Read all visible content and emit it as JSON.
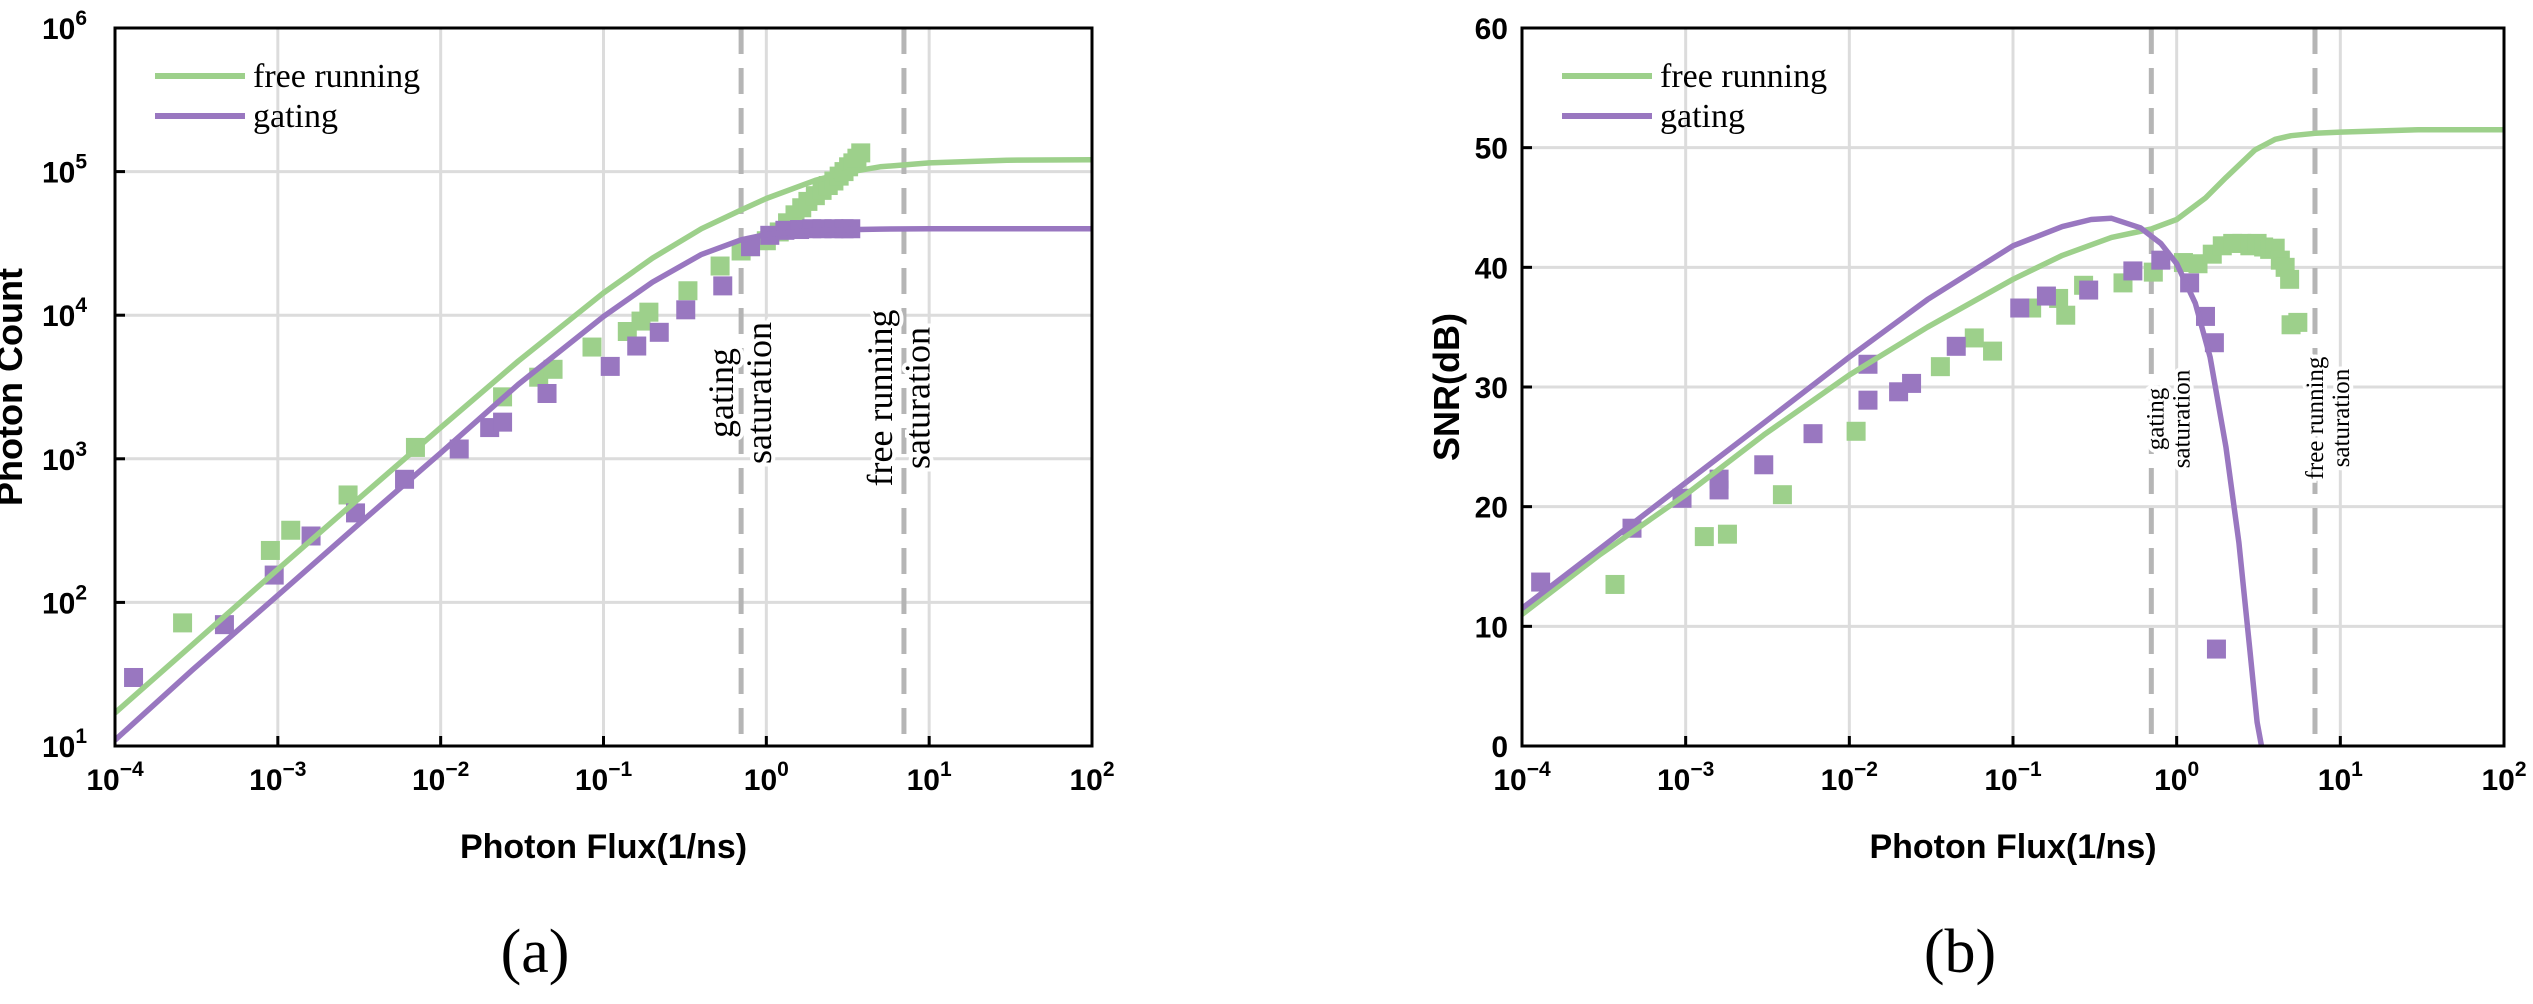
{
  "panels": {
    "a_label": "(a)",
    "b_label": "(b)"
  },
  "colors": {
    "free_running": "#9dd08b",
    "gating": "#9977c0",
    "grid": "#dcdcdc",
    "saturation_line": "#b5b5b5"
  },
  "chart_data": [
    {
      "type": "line",
      "title": "",
      "xlabel": "Photon Flux(1/ns)",
      "ylabel": "Photon Count",
      "xscale": "log",
      "yscale": "log",
      "xlim": [
        0.0001,
        100
      ],
      "ylim": [
        10,
        1000000
      ],
      "xticks": [
        0.0001,
        0.001,
        0.01,
        0.1,
        1,
        10,
        100
      ],
      "yticks": [
        10,
        100,
        1000,
        10000,
        100000,
        1000000
      ],
      "grid": true,
      "legend": {
        "position": "top-left",
        "entries": [
          "free running",
          "gating"
        ]
      },
      "vlines": [
        {
          "x": 0.7,
          "label": [
            "gating",
            "saturation"
          ]
        },
        {
          "x": 7,
          "label": [
            "free running",
            "saturation"
          ]
        }
      ],
      "series": [
        {
          "name": "free running",
          "kind": "line",
          "x": [
            0.0001,
            0.0003,
            0.001,
            0.003,
            0.01,
            0.03,
            0.1,
            0.2,
            0.4,
            0.7,
            1,
            2,
            3,
            5,
            10,
            30,
            100
          ],
          "y": [
            17,
            51,
            170,
            505,
            1650,
            4800,
            14300,
            25000,
            40000,
            54000,
            65000,
            87000,
            98000,
            108000,
            115000,
            120000,
            121000
          ]
        },
        {
          "name": "gating",
          "kind": "line",
          "x": [
            0.0001,
            0.0003,
            0.001,
            0.003,
            0.01,
            0.03,
            0.1,
            0.2,
            0.4,
            0.7,
            1,
            2,
            5,
            10,
            100
          ],
          "y": [
            11,
            34,
            112,
            335,
            1100,
            3300,
            9800,
            17000,
            26500,
            33500,
            36500,
            39000,
            39800,
            40000,
            40000
          ]
        },
        {
          "name": "free running data",
          "kind": "scatter",
          "x": [
            0.00026,
            0.0009,
            0.0012,
            0.0027,
            0.007,
            0.024,
            0.04,
            0.049,
            0.085,
            0.14,
            0.17,
            0.19,
            0.33,
            0.52,
            0.7,
            0.8,
            1.0,
            1.2,
            1.35,
            1.5,
            1.65,
            1.8,
            2.0,
            2.2,
            2.4,
            2.6,
            2.8,
            3.0,
            3.2,
            3.4,
            3.6,
            3.8
          ],
          "y": [
            72,
            230,
            318,
            560,
            1200,
            2700,
            3700,
            4200,
            6000,
            7700,
            9100,
            10500,
            14800,
            22000,
            28000,
            30000,
            33000,
            38000,
            44000,
            50000,
            56000,
            62000,
            68000,
            74000,
            80000,
            86000,
            93000,
            100000,
            108000,
            115000,
            124000,
            135000
          ]
        },
        {
          "name": "gating data",
          "kind": "scatter",
          "x": [
            0.00013,
            0.00047,
            0.00095,
            0.0016,
            0.003,
            0.006,
            0.013,
            0.02,
            0.024,
            0.045,
            0.11,
            0.16,
            0.22,
            0.32,
            0.54,
            0.8,
            1.05,
            1.3,
            1.6,
            1.9,
            2.2,
            2.6,
            3.0,
            3.3
          ],
          "y": [
            30,
            70,
            155,
            290,
            420,
            720,
            1170,
            1650,
            1800,
            2850,
            4400,
            6100,
            7600,
            10900,
            16000,
            30000,
            36000,
            39000,
            39500,
            40000,
            40000,
            40000,
            40000,
            40000
          ]
        }
      ]
    },
    {
      "type": "line",
      "title": "",
      "xlabel": "Photon Flux(1/ns)",
      "ylabel": "SNR(dB)",
      "xscale": "log",
      "yscale": "linear",
      "xlim": [
        0.0001,
        100
      ],
      "ylim": [
        0,
        60
      ],
      "xticks": [
        0.0001,
        0.001,
        0.01,
        0.1,
        1,
        10,
        100
      ],
      "yticks": [
        0,
        10,
        20,
        30,
        40,
        50,
        60
      ],
      "grid": true,
      "legend": {
        "position": "top-left",
        "entries": [
          "free running",
          "gating"
        ]
      },
      "vlines": [
        {
          "x": 0.7,
          "label": [
            "gating",
            "saturation"
          ]
        },
        {
          "x": 7,
          "label": [
            "free running",
            "saturation"
          ]
        }
      ],
      "series": [
        {
          "name": "free running",
          "kind": "line",
          "x": [
            0.0001,
            0.0003,
            0.001,
            0.003,
            0.01,
            0.03,
            0.1,
            0.2,
            0.4,
            0.7,
            1,
            1.5,
            2,
            3,
            4,
            5,
            7,
            10,
            30,
            100
          ],
          "y": [
            11,
            16,
            21,
            26,
            31,
            35,
            39,
            41,
            42.5,
            43.2,
            44,
            45.8,
            47.5,
            49.8,
            50.7,
            51,
            51.2,
            51.3,
            51.5,
            51.5
          ]
        },
        {
          "name": "gating",
          "kind": "line",
          "x": [
            0.0001,
            0.0003,
            0.001,
            0.003,
            0.01,
            0.03,
            0.1,
            0.2,
            0.3,
            0.4,
            0.6,
            0.8,
            1.0,
            1.3,
            1.6,
            2.0,
            2.4,
            2.8,
            3.1,
            3.3
          ],
          "y": [
            11.5,
            16.5,
            22,
            27,
            32.5,
            37.3,
            41.8,
            43.4,
            44,
            44.1,
            43.3,
            42,
            40.3,
            37,
            32.5,
            25,
            17,
            8,
            2,
            0
          ]
        },
        {
          "name": "free running data",
          "kind": "scatter",
          "x": [
            0.00037,
            0.0013,
            0.0018,
            0.0039,
            0.011,
            0.036,
            0.058,
            0.075,
            0.13,
            0.19,
            0.21,
            0.27,
            0.47,
            0.72,
            1.1,
            1.35,
            1.65,
            1.9,
            2.2,
            2.5,
            2.8,
            3.1,
            3.4,
            3.7,
            4.0,
            4.3,
            4.6,
            4.9,
            5.0,
            5.5
          ],
          "y": [
            13.5,
            17.5,
            17.7,
            21,
            26.3,
            31.7,
            34.1,
            33,
            36.6,
            37.4,
            36,
            38.5,
            38.7,
            39.6,
            40.4,
            40.3,
            41.1,
            41.8,
            42,
            42,
            41.8,
            42,
            41.7,
            41.5,
            41.6,
            40.6,
            40,
            39,
            35.2,
            35.4
          ]
        },
        {
          "name": "gating data",
          "kind": "scatter",
          "x": [
            0.00013,
            0.00047,
            0.00095,
            0.0016,
            0.0016,
            0.003,
            0.006,
            0.013,
            0.013,
            0.02,
            0.024,
            0.045,
            0.11,
            0.16,
            0.29,
            0.54,
            0.8,
            1.2,
            1.5,
            1.7,
            1.75
          ],
          "y": [
            13.7,
            18.2,
            20.7,
            21.4,
            22.3,
            23.5,
            26.1,
            28.9,
            31.9,
            29.6,
            30.3,
            33.4,
            36.6,
            37.6,
            38.1,
            39.7,
            40.6,
            38.7,
            35.9,
            33.7,
            8.1
          ]
        }
      ]
    }
  ]
}
